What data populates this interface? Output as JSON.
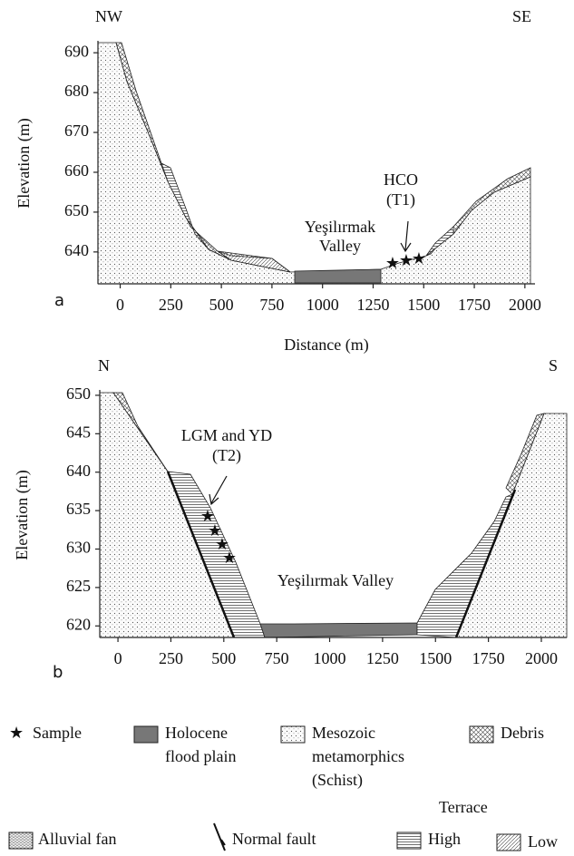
{
  "chart_data": [
    {
      "type": "cross-section",
      "panel_label": "a",
      "left_label": "NW",
      "right_label": "SE",
      "ylabel": "Elevation (m)",
      "xlabel": "Distance (m)",
      "xlim": [
        -110,
        2050
      ],
      "ylim": [
        632,
        693
      ],
      "xticks": [
        0,
        250,
        500,
        750,
        1000,
        1250,
        1500,
        1750,
        2000
      ],
      "yticks": [
        640,
        650,
        660,
        670,
        680,
        690
      ],
      "annotations": [
        "Yeşilırmak",
        "Valley",
        "HCO",
        "(T1)"
      ]
    },
    {
      "type": "cross-section",
      "panel_label": "b",
      "left_label": "N",
      "right_label": "S",
      "ylabel": "Elevation (m)",
      "xlim": [
        -86,
        2120
      ],
      "ylim": [
        618.5,
        650.7
      ],
      "xticks": [
        0,
        250,
        500,
        750,
        1000,
        1250,
        1500,
        1750,
        2000
      ],
      "yticks": [
        620,
        625,
        630,
        635,
        640,
        645,
        650
      ],
      "annotations": [
        "LGM and YD",
        "(T2)",
        "Yeşilırmak Valley"
      ]
    }
  ],
  "legend": {
    "sample": "Sample",
    "flood_plain": [
      "Holocene",
      "flood plain"
    ],
    "schist": [
      "Mesozoic",
      "metamorphics",
      "(Schist)"
    ],
    "debris": "Debris",
    "terrace": "Terrace",
    "alluvial_fan": "Alluvial fan",
    "normal_fault": "Normal fault",
    "high": "High",
    "low": "Low"
  }
}
